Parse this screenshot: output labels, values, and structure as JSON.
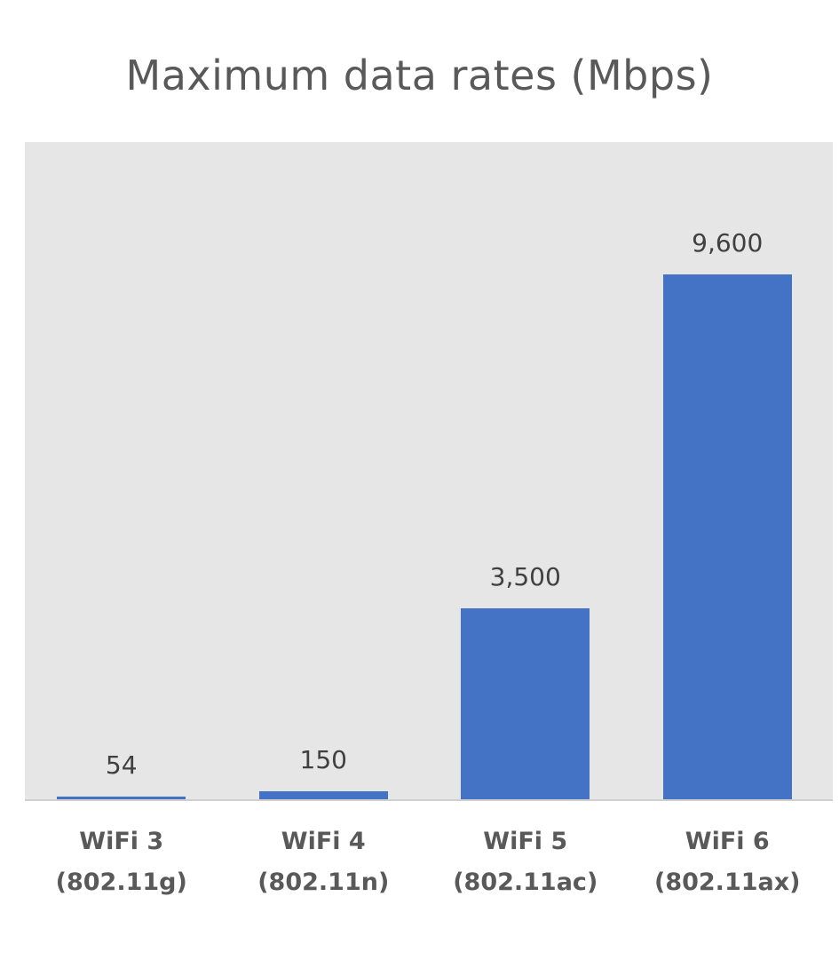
{
  "chart_data": {
    "type": "bar",
    "title": "Maximum data rates (Mbps)",
    "categories": [
      [
        "WiFi 3",
        "(802.11g)"
      ],
      [
        "WiFi 4",
        "(802.11n)"
      ],
      [
        "WiFi 5",
        "(802.11ac)"
      ],
      [
        "WiFi 6",
        "(802.11ax)"
      ]
    ],
    "values": [
      54,
      150,
      3500,
      9600
    ],
    "data_labels": [
      "54",
      "150",
      "3,500",
      "9,600"
    ],
    "xlabel": "",
    "ylabel": "",
    "ylim": [
      0,
      9600
    ],
    "bar_color": "#4472c4",
    "plot_background": "#e7e6e6",
    "grid": false,
    "legend": "none"
  }
}
